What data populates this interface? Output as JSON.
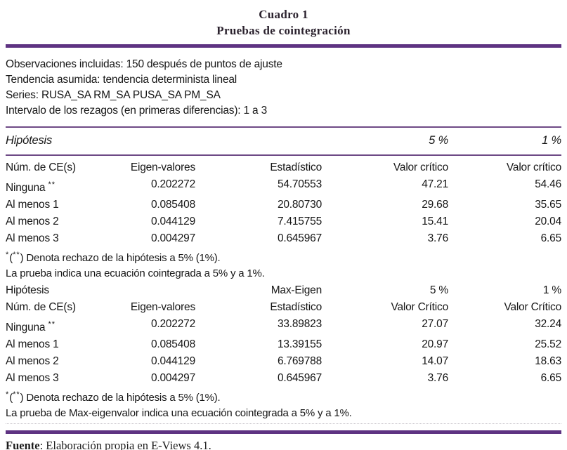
{
  "colors": {
    "accent_rule": "#5e3382",
    "thin_rule": "#6e4a86",
    "title_text": "#2b222e"
  },
  "title": {
    "line1": "Cuadro 1",
    "line2": "Pruebas de cointegración"
  },
  "info": {
    "lines": [
      "Observaciones incluidas: 150 después de puntos de ajuste",
      "Tendencia asumida: tendencia determinista lineal",
      "Series: RUSA_SA RM_SA PUSA_SA PM_SA",
      "Intervalo de los rezagos (en primeras diferencias): 1 a 3"
    ]
  },
  "trace_section": {
    "hypothesis_label": "Hipótesis",
    "crit5_label": "5 %",
    "crit1_label": "1 %",
    "headers": {
      "ce": "Núm. de CE(s)",
      "eigen": "Eigen-valores",
      "stat": "Estadístico",
      "cv5": "Valor crítico",
      "cv1": "Valor crítico"
    },
    "rows": [
      {
        "ce": "Ninguna",
        "sup": "**",
        "eigen": "0.202272",
        "stat": "54.70553",
        "cv5": "47.21",
        "cv1": "54.46"
      },
      {
        "ce": "Al menos 1",
        "sup": "",
        "eigen": "0.085408",
        "stat": "20.80730",
        "cv5": "29.68",
        "cv1": "35.65"
      },
      {
        "ce": "Al menos 2",
        "sup": "",
        "eigen": "0.044129",
        "stat": "7.415755",
        "cv5": "15.41",
        "cv1": "20.04"
      },
      {
        "ce": "Al menos 3",
        "sup": "",
        "eigen": "0.004297",
        "stat": "0.645967",
        "cv5": "3.76",
        "cv1": "6.65"
      }
    ],
    "footnote1": {
      "s1": "*",
      "p1": "(",
      "s2": "**",
      "p2": ") Denota rechazo de la hipótesis a 5% (1%)."
    },
    "footnote2": "La prueba indica una ecuación cointegrada a 5% y a 1%."
  },
  "maxeigen_section": {
    "hypothesis_label": "Hipótesis",
    "stat_label": "Max-Eigen",
    "crit5_label": "5 %",
    "crit1_label": "1 %",
    "headers": {
      "ce": "Núm. de CE(s)",
      "eigen": "Eigen-valores",
      "stat": "Estadístico",
      "cv5": "Valor Crítico",
      "cv1": "Valor Crítico"
    },
    "rows": [
      {
        "ce": "Ninguna",
        "sup": "**",
        "eigen": "0.202272",
        "stat": "33.89823",
        "cv5": "27.07",
        "cv1": "32.24"
      },
      {
        "ce": "Al menos 1",
        "sup": "",
        "eigen": "0.085408",
        "stat": "13.39155",
        "cv5": "20.97",
        "cv1": "25.52"
      },
      {
        "ce": "Al menos 2",
        "sup": "",
        "eigen": "0.044129",
        "stat": "6.769788",
        "cv5": "14.07",
        "cv1": "18.63"
      },
      {
        "ce": "Al menos 3",
        "sup": "",
        "eigen": "0.004297",
        "stat": "0.645967",
        "cv5": "3.76",
        "cv1": "6.65"
      }
    ],
    "footnote1": {
      "s1": "*",
      "p1": "(",
      "s2": "**",
      "p2": ") Denota rechazo de la hipótesis a 5% (1%)."
    },
    "footnote2": "La prueba de Max-eigenvalor indica una ecuación cointegrada a 5% y a 1%."
  },
  "source": {
    "label": "Fuente",
    "rest": ": Elaboración propia en E-Views 4.1."
  }
}
